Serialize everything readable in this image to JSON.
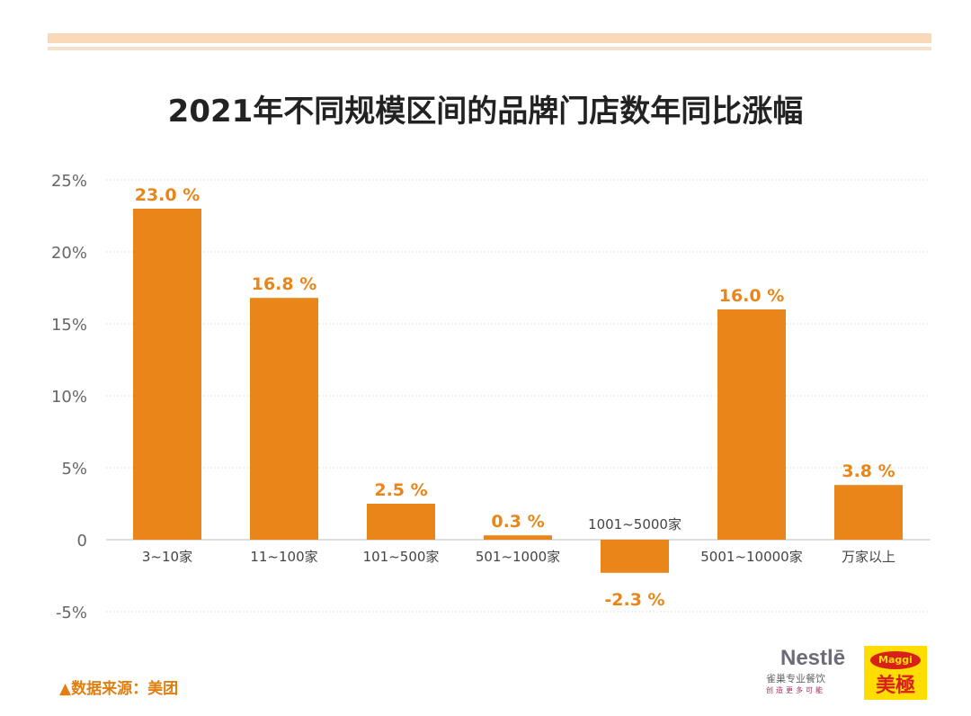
{
  "chart_data": {
    "type": "bar",
    "title": "2021年不同规模区间的品牌门店数年同比涨幅",
    "categories": [
      "3~10家",
      "11~100家",
      "101~500家",
      "501~1000家",
      "1001~5000家",
      "5001~10000家",
      "万家以上"
    ],
    "values": [
      23.0,
      16.8,
      2.5,
      0.3,
      -2.3,
      16.0,
      3.8
    ],
    "data_labels": [
      "23.0 %",
      "16.8 %",
      "2.5 %",
      "0.3 %",
      "-2.3 %",
      "16.0 %",
      "3.8 %"
    ],
    "y_ticks": [
      "25%",
      "20%",
      "15%",
      "10%",
      "5%",
      "0",
      "-5%"
    ],
    "y_tick_values": [
      25,
      20,
      15,
      10,
      5,
      0,
      -5
    ],
    "ylim": [
      -5,
      25
    ],
    "grid": true,
    "bar_color": "#e8861a",
    "label_color": "#e8861a"
  },
  "footer": {
    "source": "▲数据来源：美团"
  },
  "logos": {
    "nestle": "Nestlé 雀巢专业餐饮 创造更多可能",
    "maggi": "Maggi 美極"
  }
}
